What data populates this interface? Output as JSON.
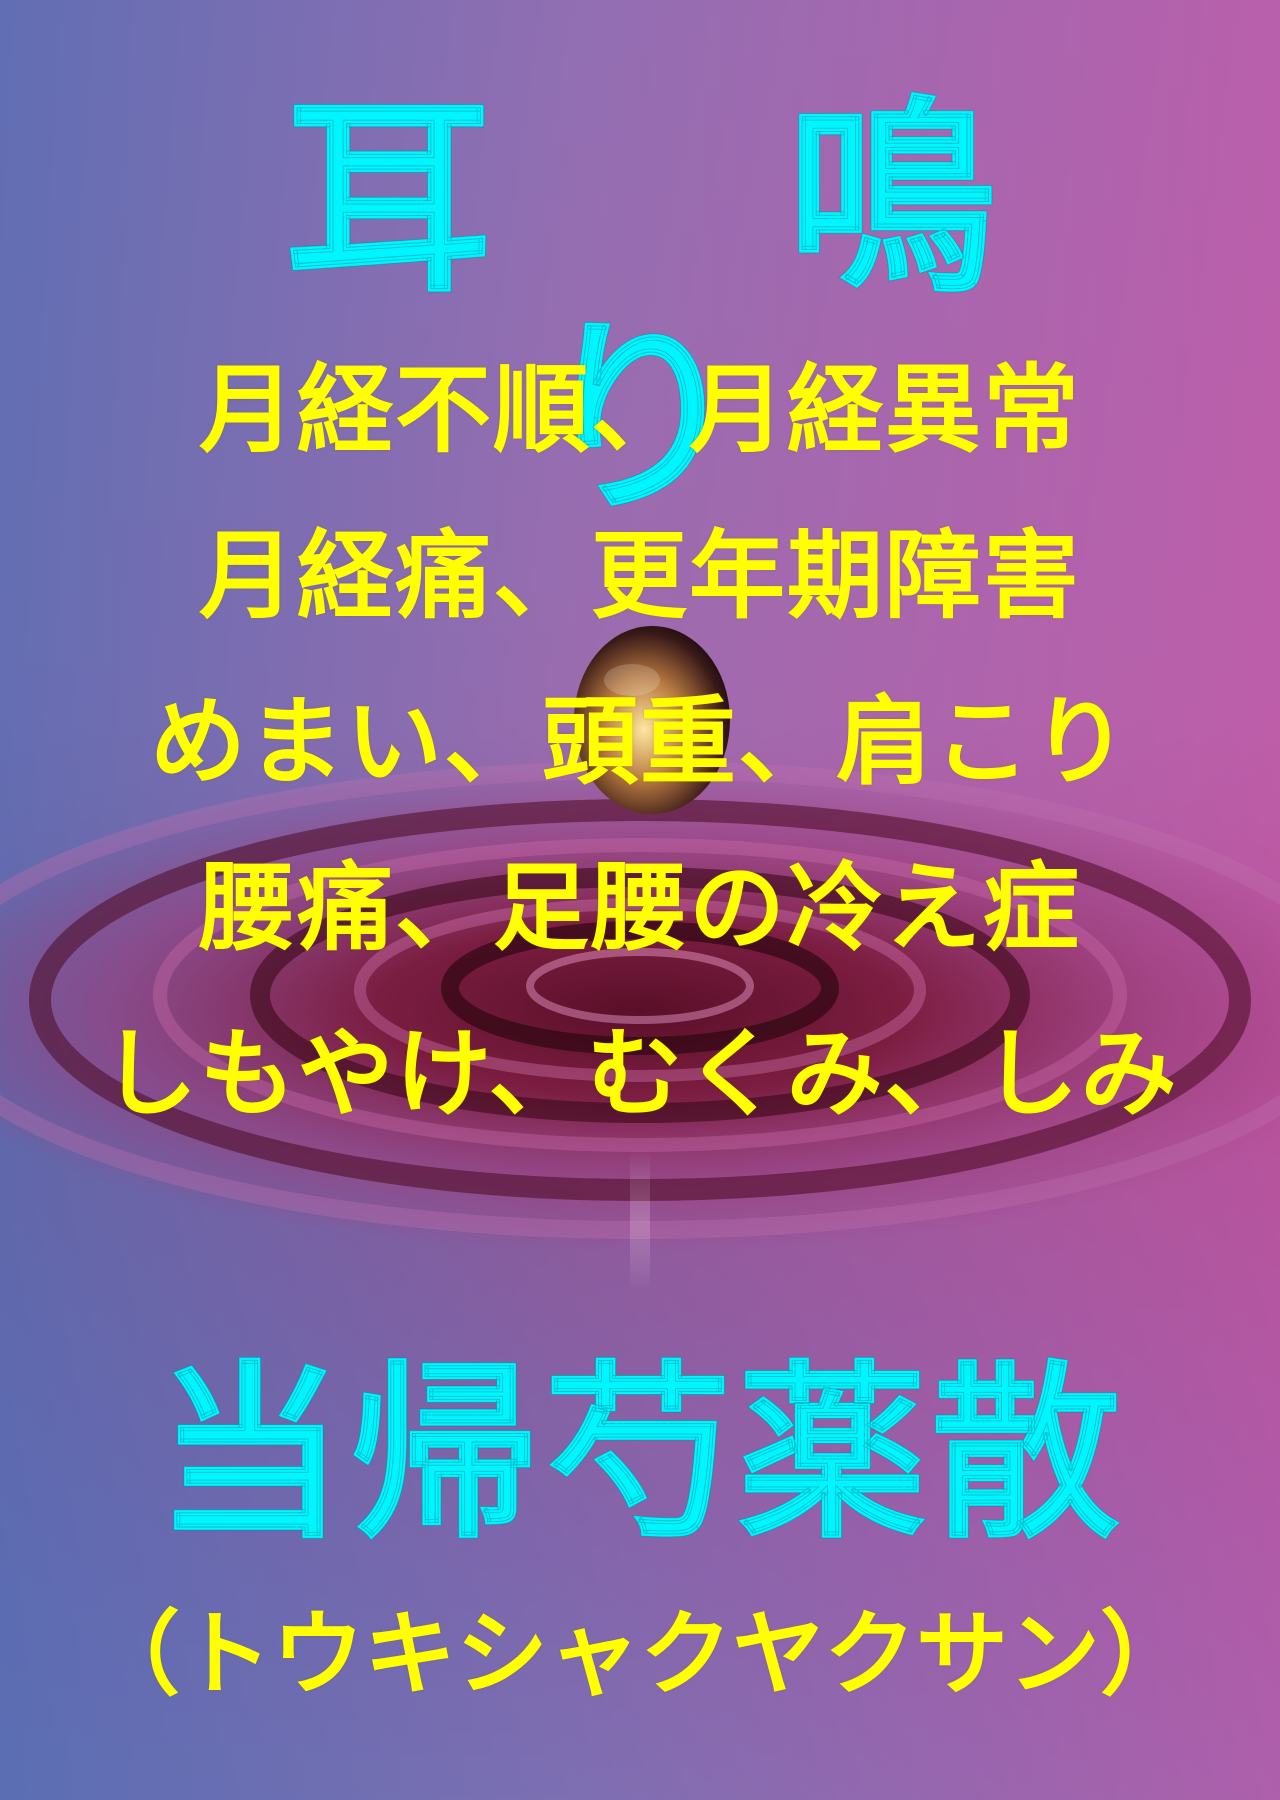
{
  "poster": {
    "title": "耳 鳴 り",
    "symptoms": [
      "月経不順、月経異常",
      "月経痛、更年期障害",
      "めまい、頭重、肩こり",
      "腰痛、足腰の冷え症",
      "しもやけ、むくみ、しみ"
    ],
    "product_name": "当帰芍薬散",
    "product_reading": "（トウキシャクヤクサン）"
  },
  "colors": {
    "title": "#00f6ff",
    "body_text": "#ffff00",
    "background_left": "#5a6eb4",
    "background_right": "#c85aaa",
    "water_center": "#5a0f28"
  },
  "background_image": "water-droplet-ripple"
}
